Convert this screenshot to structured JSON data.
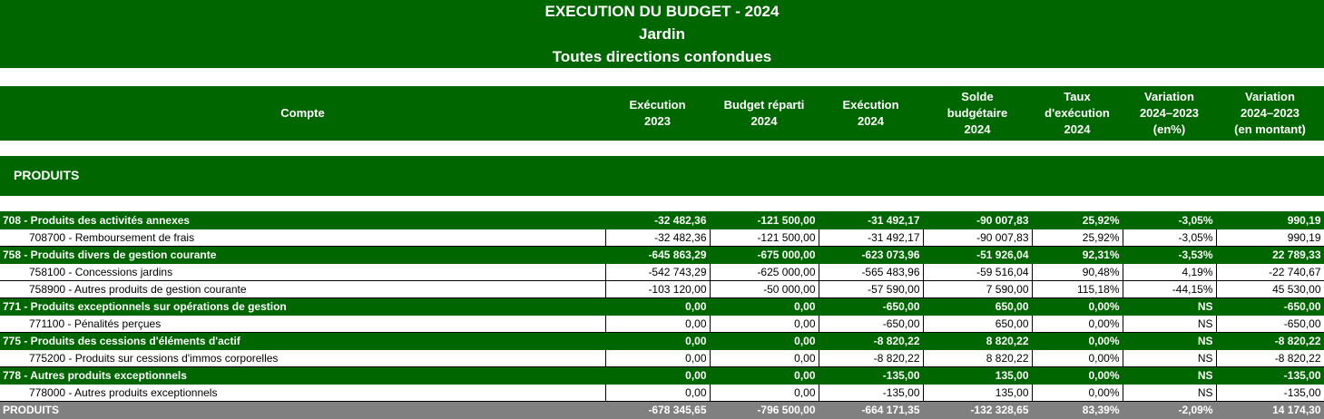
{
  "title": {
    "line1": "EXECUTION DU BUDGET - 2024",
    "line2": "Jardin",
    "line3": "Toutes directions confondues"
  },
  "columns": {
    "compte": "Compte",
    "exec2023": "Exécution\n2023",
    "budget2024": "Budget réparti\n2024",
    "exec2024": "Exécution\n2024",
    "solde": "Solde\nbudgétaire\n2024",
    "taux": "Taux\nd'exécution\n2024",
    "var_pct": "Variation\n2024–2023\n(en%)",
    "var_mnt": "Variation\n2024–2023\n(en montant)"
  },
  "section": "PRODUITS",
  "rows": [
    {
      "type": "group",
      "label": "708 - Produits des activités annexes",
      "v": [
        "-32 482,36",
        "-121 500,00",
        "-31 492,17",
        "-90 007,83",
        "25,92%",
        "-3,05%",
        "990,19"
      ]
    },
    {
      "type": "detail",
      "label": "708700 - Remboursement de frais",
      "v": [
        "-32 482,36",
        "-121 500,00",
        "-31 492,17",
        "-90 007,83",
        "25,92%",
        "-3,05%",
        "990,19"
      ]
    },
    {
      "type": "group",
      "label": "758 - Produits divers de gestion courante",
      "v": [
        "-645 863,29",
        "-675 000,00",
        "-623 073,96",
        "-51 926,04",
        "92,31%",
        "-3,53%",
        "22 789,33"
      ]
    },
    {
      "type": "detail",
      "label": "758100 - Concessions jardins",
      "v": [
        "-542 743,29",
        "-625 000,00",
        "-565 483,96",
        "-59 516,04",
        "90,48%",
        "4,19%",
        "-22 740,67"
      ]
    },
    {
      "type": "detail",
      "label": "758900 - Autres produits de gestion courante",
      "v": [
        "-103 120,00",
        "-50 000,00",
        "-57 590,00",
        "7 590,00",
        "115,18%",
        "-44,15%",
        "45 530,00"
      ]
    },
    {
      "type": "group",
      "label": "771 - Produits exceptionnels sur opérations de gestion",
      "v": [
        "0,00",
        "0,00",
        "-650,00",
        "650,00",
        "0,00%",
        "NS",
        "-650,00"
      ]
    },
    {
      "type": "detail",
      "label": "771100 - Pénalités perçues",
      "v": [
        "0,00",
        "0,00",
        "-650,00",
        "650,00",
        "0,00%",
        "NS",
        "-650,00"
      ]
    },
    {
      "type": "group",
      "label": "775 - Produits des cessions d'éléments d'actif",
      "v": [
        "0,00",
        "0,00",
        "-8 820,22",
        "8 820,22",
        "0,00%",
        "NS",
        "-8 820,22"
      ]
    },
    {
      "type": "detail",
      "label": "775200 - Produits sur cessions d'immos corporelles",
      "v": [
        "0,00",
        "0,00",
        "-8 820,22",
        "8 820,22",
        "0,00%",
        "NS",
        "-8 820,22"
      ]
    },
    {
      "type": "group",
      "label": "778 - Autres produits exceptionnels",
      "v": [
        "0,00",
        "0,00",
        "-135,00",
        "135,00",
        "0,00%",
        "NS",
        "-135,00"
      ]
    },
    {
      "type": "detail",
      "label": "778000 - Autres produits exceptionnels",
      "v": [
        "0,00",
        "0,00",
        "-135,00",
        "135,00",
        "0,00%",
        "NS",
        "-135,00"
      ]
    },
    {
      "type": "total",
      "label": "PRODUITS",
      "v": [
        "-678 345,65",
        "-796 500,00",
        "-664 171,35",
        "-132 328,65",
        "83,39%",
        "-2,09%",
        "14 174,30"
      ]
    }
  ]
}
